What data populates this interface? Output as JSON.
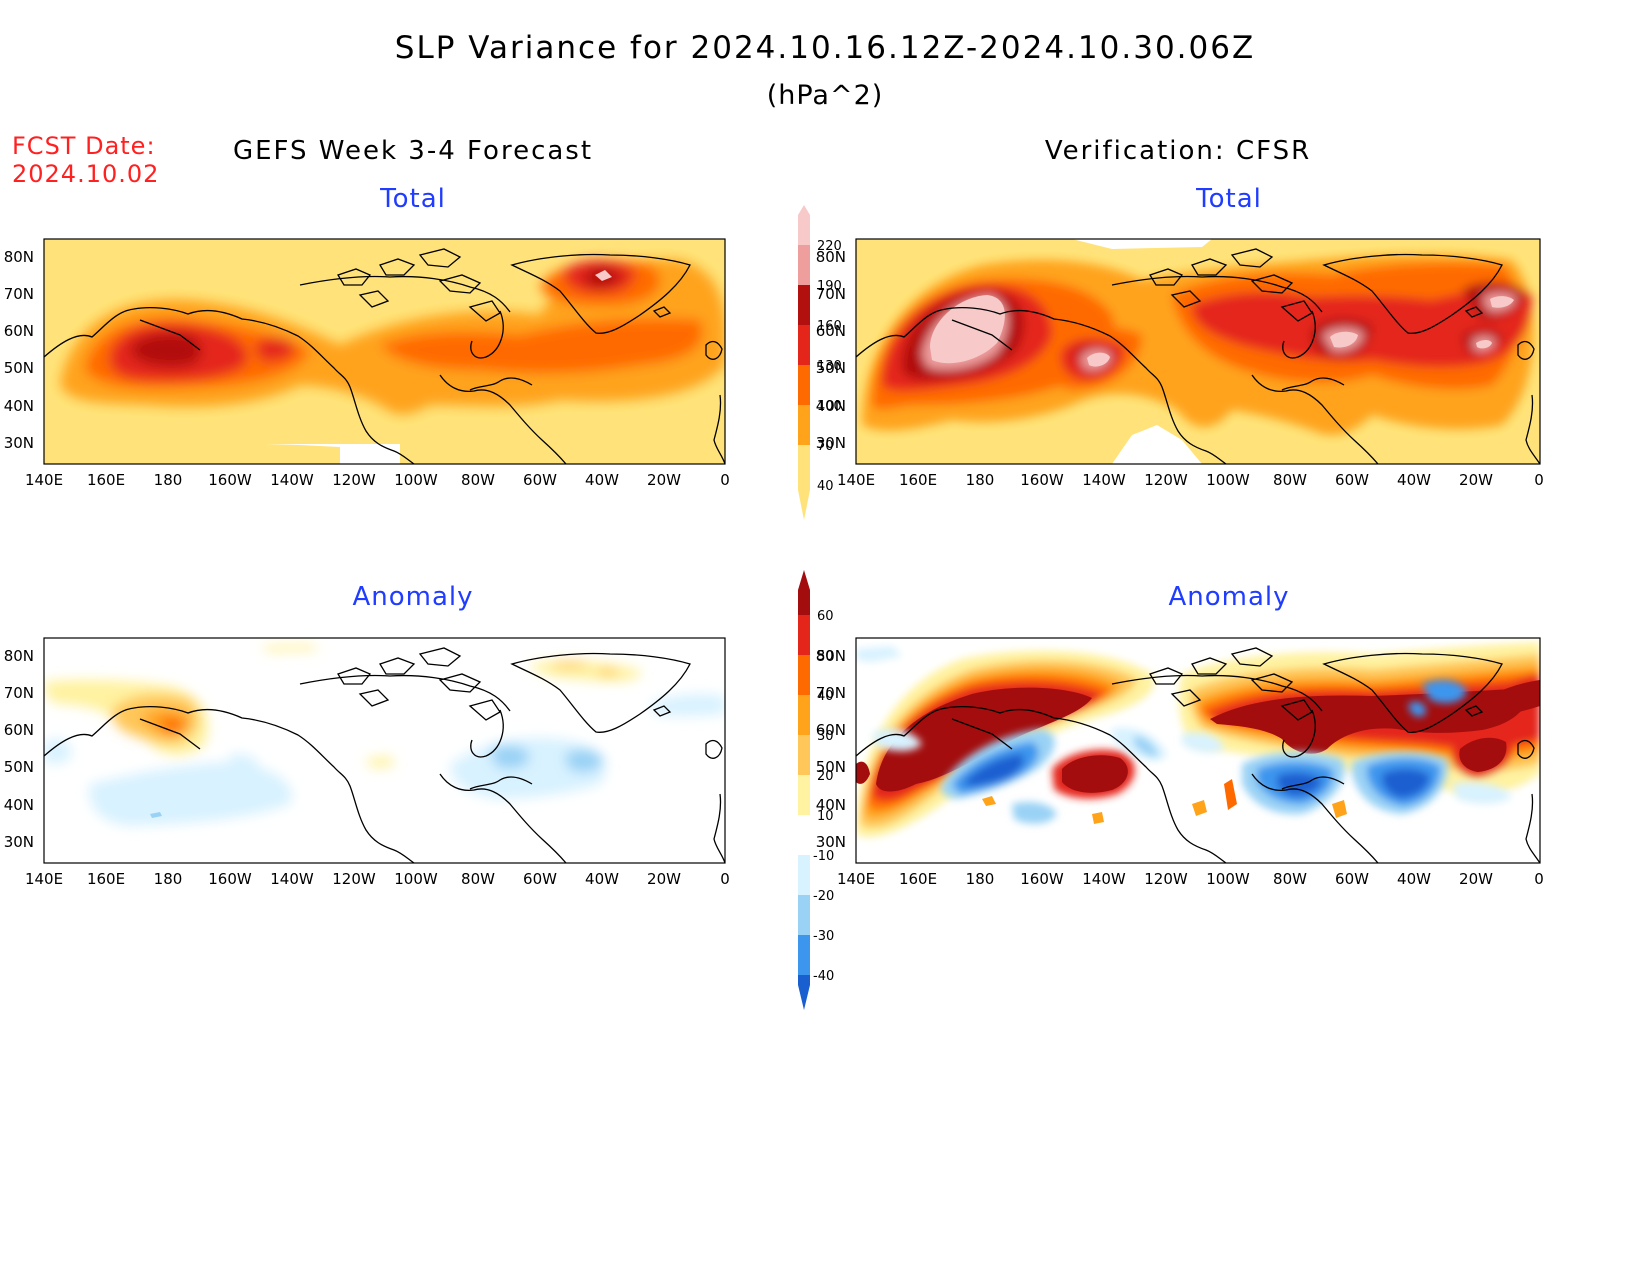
{
  "header": {
    "title": "SLP Variance for 2024.10.16.12Z-2024.10.30.06Z",
    "units": "(hPa^2)",
    "fcst_label": "FCST Date:",
    "fcst_date": "2024.10.02"
  },
  "columns": {
    "left": "GEFS Week 3-4 Forecast",
    "right": "Verification: CFSR"
  },
  "panels": [
    {
      "id": "gefs-total",
      "title": "Total",
      "field": "total"
    },
    {
      "id": "cfsr-total",
      "title": "Total",
      "field": "total"
    },
    {
      "id": "gefs-anomaly",
      "title": "Anomaly",
      "field": "anomaly"
    },
    {
      "id": "cfsr-anomaly",
      "title": "Anomaly",
      "field": "anomaly"
    }
  ],
  "axes": {
    "lat_labels": [
      "80N",
      "70N",
      "60N",
      "50N",
      "40N",
      "30N"
    ],
    "lon_labels": [
      "140E",
      "160E",
      "180",
      "160W",
      "140W",
      "120W",
      "100W",
      "80W",
      "60W",
      "40W",
      "20W",
      "0"
    ]
  },
  "colorbars": {
    "total": {
      "labels": [
        "220",
        "190",
        "160",
        "130",
        "100",
        "70",
        "40"
      ],
      "colors": [
        "#f7c9c9",
        "#ef9e9e",
        "#b20f0f",
        "#e4261a",
        "#ff6a00",
        "#ffa31a",
        "#ffe37a"
      ]
    },
    "anomaly": {
      "labels": [
        "60",
        "50",
        "40",
        "30",
        "20",
        "10",
        "-10",
        "-20",
        "-30",
        "-40"
      ],
      "colors": [
        "#a30d0d",
        "#e4261a",
        "#ff6a00",
        "#ffa31a",
        "#ffc75a",
        "#fff2a0",
        "#ffffff",
        "#d8f2ff",
        "#9ad2f5",
        "#3c96ee",
        "#1a5fd0"
      ]
    }
  }
}
